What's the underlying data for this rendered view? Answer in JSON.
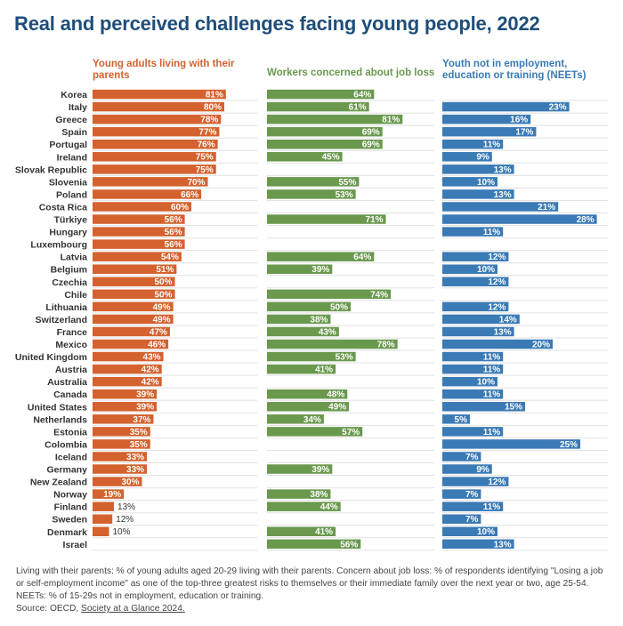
{
  "title": "Real and perceived challenges facing young people, 2022",
  "chart_data": {
    "type": "bar",
    "orientation": "horizontal",
    "categories": [
      "Korea",
      "Italy",
      "Greece",
      "Spain",
      "Portugal",
      "Ireland",
      "Slovak Republic",
      "Slovenia",
      "Poland",
      "Costa Rica",
      "Türkiye",
      "Hungary",
      "Luxembourg",
      "Latvia",
      "Belgium",
      "Czechia",
      "Chile",
      "Lithuania",
      "Switzerland",
      "France",
      "Mexico",
      "United Kingdom",
      "Austria",
      "Australia",
      "Canada",
      "United States",
      "Netherlands",
      "Estonia",
      "Colombia",
      "Iceland",
      "Germany",
      "New Zealand",
      "Norway",
      "Finland",
      "Sweden",
      "Denmark",
      "Israel"
    ],
    "series": [
      {
        "name": "Young adults living with their parents",
        "color": "#d4622e",
        "values": [
          81,
          80,
          78,
          77,
          76,
          75,
          75,
          70,
          66,
          60,
          56,
          56,
          56,
          54,
          51,
          50,
          50,
          49,
          49,
          47,
          46,
          43,
          42,
          42,
          39,
          39,
          37,
          35,
          35,
          33,
          33,
          30,
          19,
          13,
          12,
          10,
          null
        ]
      },
      {
        "name": "Workers concerned about job loss",
        "color": "#6a994e",
        "values": [
          64,
          61,
          81,
          69,
          69,
          45,
          null,
          55,
          53,
          null,
          71,
          null,
          null,
          64,
          39,
          null,
          74,
          50,
          38,
          43,
          78,
          53,
          41,
          null,
          48,
          49,
          34,
          57,
          null,
          null,
          39,
          null,
          38,
          44,
          null,
          41,
          56
        ]
      },
      {
        "name": "Youth not in employment, education or training (NEETs)",
        "color": "#3a7ab5",
        "values": [
          null,
          23,
          16,
          17,
          11,
          9,
          13,
          10,
          13,
          21,
          28,
          11,
          null,
          12,
          10,
          12,
          null,
          12,
          14,
          13,
          20,
          11,
          11,
          10,
          11,
          15,
          5,
          11,
          25,
          7,
          9,
          12,
          7,
          11,
          7,
          10,
          13
        ]
      }
    ],
    "panel_titles": [
      "Young adults living with their parents",
      "Workers concerned about job loss",
      "Youth not in employment, education or training (NEETs)"
    ],
    "value_suffix": "%",
    "panel_max": [
      100,
      100,
      30
    ],
    "grid": false,
    "legend": "none"
  },
  "note": {
    "text": "Living with their parents: % of young adults aged 20-29 living with their parents. Concern about job loss: % of respondents identifying \"Losing a job or self-employment income\" as one of the top-three greatest risks to themselves or their immediate family over the next year or two, age 25-54. NEETs: % of 15-29s not in employment, education or training.",
    "source_prefix": "Source: OECD, ",
    "source_link": "Society at a Glance 2024."
  }
}
